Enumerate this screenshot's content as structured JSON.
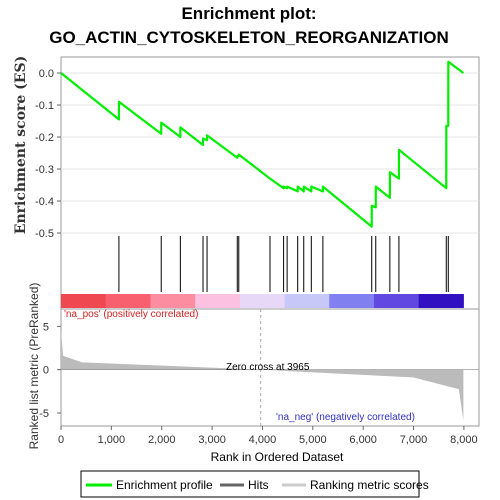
{
  "chart_data": {
    "type": "line",
    "title_line1": "Enrichment plot:",
    "title_line2": "GO_ACTIN_CYTOSKELETON_REORGANIZATION",
    "es_ylabel": "Enrichment score (ES)",
    "es_yticks": [
      "0.0",
      "-0.1",
      "-0.2",
      "-0.3",
      "-0.4",
      "-0.5"
    ],
    "es_ylim": [
      -0.5,
      0.05
    ],
    "metric_ylabel": "Ranked list metric (PreRanked)",
    "metric_yticks": [
      "5",
      "0",
      "-5"
    ],
    "metric_ylim": [
      -6.5,
      7
    ],
    "xlabel": "Rank in Ordered Dataset",
    "xticks": [
      "0",
      "1,000",
      "2,000",
      "3,000",
      "4,000",
      "5,000",
      "6,000",
      "7,000",
      "8,000"
    ],
    "xlim": [
      0,
      8300
    ],
    "n_genes": 7990,
    "zero_cross_label": "Zero cross at 3965",
    "zero_cross": 3965,
    "pos_label": "'na_pos' (positively correlated)",
    "neg_label": "'na_neg' (negatively correlated)",
    "hits": [
      1150,
      1990,
      2370,
      2820,
      2900,
      3500,
      3530,
      4150,
      4420,
      4490,
      4700,
      4820,
      4970,
      5200,
      6170,
      6250,
      6530,
      6710,
      7650,
      7690
    ],
    "es_points": [
      [
        0,
        0.0
      ],
      [
        1150,
        -0.145
      ],
      [
        1151,
        -0.09
      ],
      [
        1990,
        -0.19
      ],
      [
        1991,
        -0.155
      ],
      [
        2370,
        -0.2
      ],
      [
        2371,
        -0.17
      ],
      [
        2820,
        -0.225
      ],
      [
        2821,
        -0.205
      ],
      [
        2900,
        -0.21
      ],
      [
        2901,
        -0.195
      ],
      [
        3500,
        -0.265
      ],
      [
        3501,
        -0.26
      ],
      [
        3530,
        -0.26
      ],
      [
        3531,
        -0.255
      ],
      [
        4150,
        -0.33
      ],
      [
        4420,
        -0.36
      ],
      [
        4421,
        -0.355
      ],
      [
        4490,
        -0.36
      ],
      [
        4491,
        -0.355
      ],
      [
        4700,
        -0.37
      ],
      [
        4701,
        -0.355
      ],
      [
        4820,
        -0.37
      ],
      [
        4821,
        -0.355
      ],
      [
        4970,
        -0.37
      ],
      [
        4971,
        -0.355
      ],
      [
        5200,
        -0.37
      ],
      [
        5201,
        -0.355
      ],
      [
        6170,
        -0.48
      ],
      [
        6171,
        -0.415
      ],
      [
        6250,
        -0.42
      ],
      [
        6251,
        -0.355
      ],
      [
        6530,
        -0.39
      ],
      [
        6531,
        -0.31
      ],
      [
        6710,
        -0.33
      ],
      [
        6711,
        -0.24
      ],
      [
        7650,
        -0.36
      ],
      [
        7651,
        -0.165
      ],
      [
        7690,
        -0.165
      ],
      [
        7691,
        0.035
      ],
      [
        7990,
        0.0
      ]
    ],
    "heat_colors": [
      "#f04850",
      "#f86070",
      "#fc8ca0",
      "#fcc0e0",
      "#e8d8f8",
      "#c8c8f8",
      "#8080f0",
      "#6048e0",
      "#3010c0"
    ],
    "legend": [
      "Enrichment profile",
      "Hits",
      "Ranking metric scores"
    ],
    "colors": {
      "profile": "#00ee00",
      "hits": "#000000",
      "metric": "#bbbbbb",
      "pos_text": "#d02020",
      "neg_text": "#3030c0"
    }
  }
}
